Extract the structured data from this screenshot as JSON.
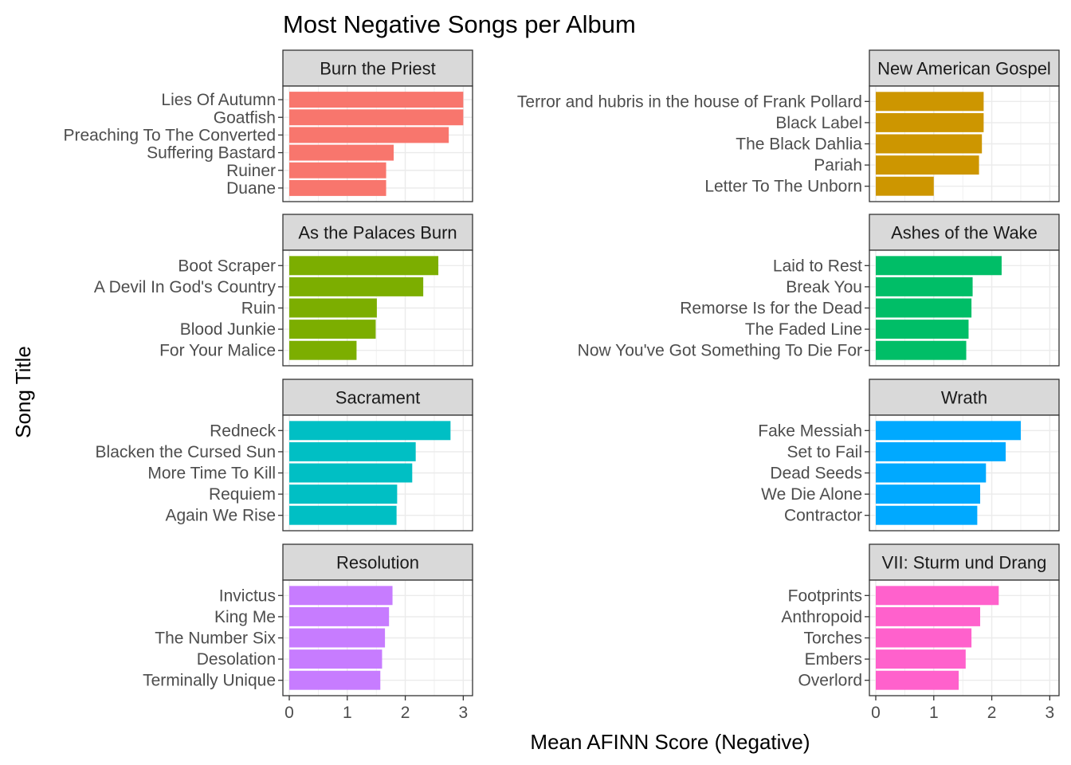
{
  "chart_data": {
    "type": "bar",
    "orientation": "horizontal",
    "title": "Most Negative Songs per Album",
    "xlabel": "Mean AFINN Score (Negative)",
    "ylabel": "Song Title",
    "xlim": [
      0,
      3.05
    ],
    "x_ticks": [
      "0",
      "1",
      "2",
      "3"
    ],
    "grid": true,
    "legend": "none",
    "facets": [
      {
        "album": "Burn the Priest",
        "color": "#F8766D",
        "songs": [
          "Lies Of Autumn",
          "Goatfish",
          "Preaching To The Converted",
          "Suffering Bastard",
          "Ruiner",
          "Duane"
        ],
        "values": [
          3.0,
          3.0,
          2.75,
          1.8,
          1.67,
          1.67
        ]
      },
      {
        "album": "New American Gospel",
        "color": "#CD9600",
        "songs": [
          "Terror and hubris in the house of Frank Pollard",
          "Black Label",
          "The Black Dahlia",
          "Pariah",
          "Letter To The Unborn"
        ],
        "values": [
          1.86,
          1.86,
          1.83,
          1.78,
          1.0
        ]
      },
      {
        "album": "As the Palaces Burn",
        "color": "#7CAE00",
        "songs": [
          "Boot Scraper",
          "A Devil In God's Country",
          "Ruin",
          "Blood Junkie",
          "For Your Malice"
        ],
        "values": [
          2.57,
          2.31,
          1.51,
          1.49,
          1.16
        ]
      },
      {
        "album": "Ashes of the Wake",
        "color": "#00BE67",
        "songs": [
          "Laid to Rest",
          "Break You",
          "Remorse Is for the Dead",
          "The Faded Line",
          "Now You've Got Something To Die For"
        ],
        "values": [
          2.17,
          1.67,
          1.65,
          1.6,
          1.56
        ]
      },
      {
        "album": "Sacrament",
        "color": "#00BFC4",
        "songs": [
          "Redneck",
          "Blacken the Cursed Sun",
          "More Time To Kill",
          "Requiem",
          "Again We Rise"
        ],
        "values": [
          2.78,
          2.18,
          2.12,
          1.86,
          1.85
        ]
      },
      {
        "album": "Wrath",
        "color": "#00A9FF",
        "songs": [
          "Fake Messiah",
          "Set to Fail",
          "Dead Seeds",
          "We Die Alone",
          "Contractor"
        ],
        "values": [
          2.5,
          2.24,
          1.9,
          1.8,
          1.75
        ]
      },
      {
        "album": "Resolution",
        "color": "#C77CFF",
        "songs": [
          "Invictus",
          "King Me",
          "The Number Six",
          "Desolation",
          "Terminally Unique"
        ],
        "values": [
          1.78,
          1.72,
          1.65,
          1.6,
          1.57
        ]
      },
      {
        "album": "VII: Sturm und Drang",
        "color": "#FF61CC",
        "songs": [
          "Footprints",
          "Anthropoid",
          "Torches",
          "Embers",
          "Overlord"
        ],
        "values": [
          2.12,
          1.8,
          1.65,
          1.55,
          1.43
        ]
      }
    ]
  }
}
